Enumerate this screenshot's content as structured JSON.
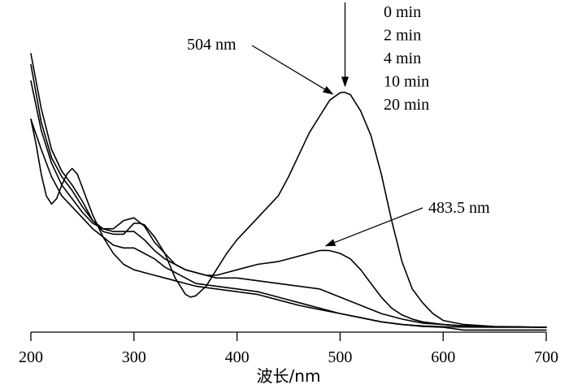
{
  "chart_data": {
    "type": "line",
    "xlabel": "波长/nm",
    "ylabel": "",
    "xlim": [
      200,
      700
    ],
    "ylim": [
      0,
      1.0
    ],
    "xticks": [
      "200",
      "300",
      "400",
      "500",
      "600",
      "700"
    ],
    "grid": false,
    "legend_position": "top-right",
    "legend": [
      "0 min",
      "2 min",
      "4 min",
      "10 min",
      "20 min"
    ],
    "annotations": [
      {
        "text": "504 nm",
        "x": 504,
        "y": 0.859
      },
      {
        "text": "483.5 nm",
        "x": 483.5,
        "y": 0.281
      },
      {
        "text": "",
        "x": 504,
        "y": 0.859,
        "note": "vertical arrow"
      }
    ],
    "series": [
      {
        "name": "0 min",
        "x": [
          200,
          210,
          220,
          230,
          240,
          250,
          260,
          270,
          280,
          290,
          300,
          305,
          310,
          320,
          330,
          340,
          350,
          355,
          360,
          370,
          380,
          390,
          400,
          410,
          420,
          430,
          440,
          450,
          460,
          470,
          480,
          490,
          500,
          504,
          510,
          520,
          530,
          540,
          550,
          560,
          570,
          580,
          590,
          600,
          620,
          650,
          700
        ],
        "y": [
          1.0,
          0.8,
          0.65,
          0.57,
          0.52,
          0.46,
          0.39,
          0.35,
          0.34,
          0.34,
          0.38,
          0.38,
          0.375,
          0.33,
          0.27,
          0.18,
          0.12,
          0.11,
          0.115,
          0.15,
          0.21,
          0.27,
          0.32,
          0.36,
          0.4,
          0.44,
          0.48,
          0.55,
          0.63,
          0.71,
          0.77,
          0.83,
          0.857,
          0.859,
          0.85,
          0.79,
          0.7,
          0.56,
          0.39,
          0.24,
          0.14,
          0.09,
          0.05,
          0.025,
          0.01,
          0.003,
          0.0
        ]
      },
      {
        "name": "2 min",
        "x": [
          200,
          210,
          220,
          230,
          240,
          250,
          260,
          270,
          280,
          290,
          300,
          310,
          320,
          330,
          340,
          350,
          360,
          370,
          380,
          390,
          400,
          420,
          440,
          460,
          480,
          483.5,
          490,
          500,
          510,
          520,
          530,
          540,
          550,
          560,
          570,
          580,
          590,
          600,
          620,
          650,
          700
        ],
        "y": [
          0.96,
          0.75,
          0.62,
          0.55,
          0.5,
          0.44,
          0.39,
          0.36,
          0.36,
          0.39,
          0.4,
          0.37,
          0.31,
          0.27,
          0.23,
          0.21,
          0.2,
          0.19,
          0.19,
          0.2,
          0.21,
          0.23,
          0.24,
          0.26,
          0.28,
          0.281,
          0.28,
          0.27,
          0.25,
          0.21,
          0.16,
          0.11,
          0.07,
          0.045,
          0.03,
          0.02,
          0.015,
          0.01,
          0.005,
          0.002,
          0.0
        ]
      },
      {
        "name": "4 min",
        "x": [
          200,
          210,
          220,
          230,
          240,
          250,
          260,
          270,
          280,
          290,
          300,
          310,
          320,
          330,
          340,
          350,
          360,
          370,
          380,
          390,
          400,
          420,
          440,
          460,
          480,
          500,
          520,
          540,
          560,
          580,
          600,
          620,
          650,
          700
        ],
        "y": [
          0.9,
          0.72,
          0.6,
          0.52,
          0.47,
          0.42,
          0.38,
          0.36,
          0.35,
          0.35,
          0.35,
          0.32,
          0.28,
          0.25,
          0.23,
          0.21,
          0.2,
          0.19,
          0.18,
          0.18,
          0.18,
          0.17,
          0.16,
          0.15,
          0.14,
          0.11,
          0.08,
          0.05,
          0.03,
          0.015,
          0.01,
          0.005,
          0.002,
          0.0
        ]
      },
      {
        "name": "10 min",
        "x": [
          200,
          210,
          220,
          230,
          240,
          250,
          260,
          270,
          280,
          290,
          300,
          310,
          320,
          330,
          340,
          350,
          360,
          380,
          400,
          420,
          440,
          460,
          480,
          500,
          520,
          540,
          560,
          580,
          600,
          620,
          650,
          700
        ],
        "y": [
          0.76,
          0.65,
          0.55,
          0.48,
          0.44,
          0.4,
          0.36,
          0.33,
          0.3,
          0.29,
          0.29,
          0.27,
          0.25,
          0.22,
          0.2,
          0.18,
          0.16,
          0.15,
          0.14,
          0.13,
          0.11,
          0.09,
          0.07,
          0.05,
          0.035,
          0.02,
          0.01,
          0.005,
          0.002,
          0.001,
          0.0,
          0.0
        ]
      },
      {
        "name": "20 min",
        "x": [
          200,
          205,
          210,
          215,
          220,
          225,
          230,
          235,
          240,
          245,
          250,
          255,
          260,
          270,
          280,
          290,
          300,
          310,
          320,
          330,
          340,
          350,
          360,
          380,
          400,
          420,
          440,
          460,
          480,
          500,
          520,
          540,
          560,
          580,
          600,
          620,
          650,
          700
        ],
        "y": [
          0.76,
          0.67,
          0.56,
          0.48,
          0.45,
          0.47,
          0.52,
          0.56,
          0.58,
          0.56,
          0.51,
          0.46,
          0.41,
          0.33,
          0.27,
          0.23,
          0.21,
          0.2,
          0.19,
          0.18,
          0.17,
          0.16,
          0.15,
          0.14,
          0.13,
          0.12,
          0.1,
          0.08,
          0.065,
          0.05,
          0.035,
          0.02,
          0.01,
          0.003,
          0.0,
          -0.01,
          -0.01,
          -0.01
        ]
      }
    ]
  }
}
